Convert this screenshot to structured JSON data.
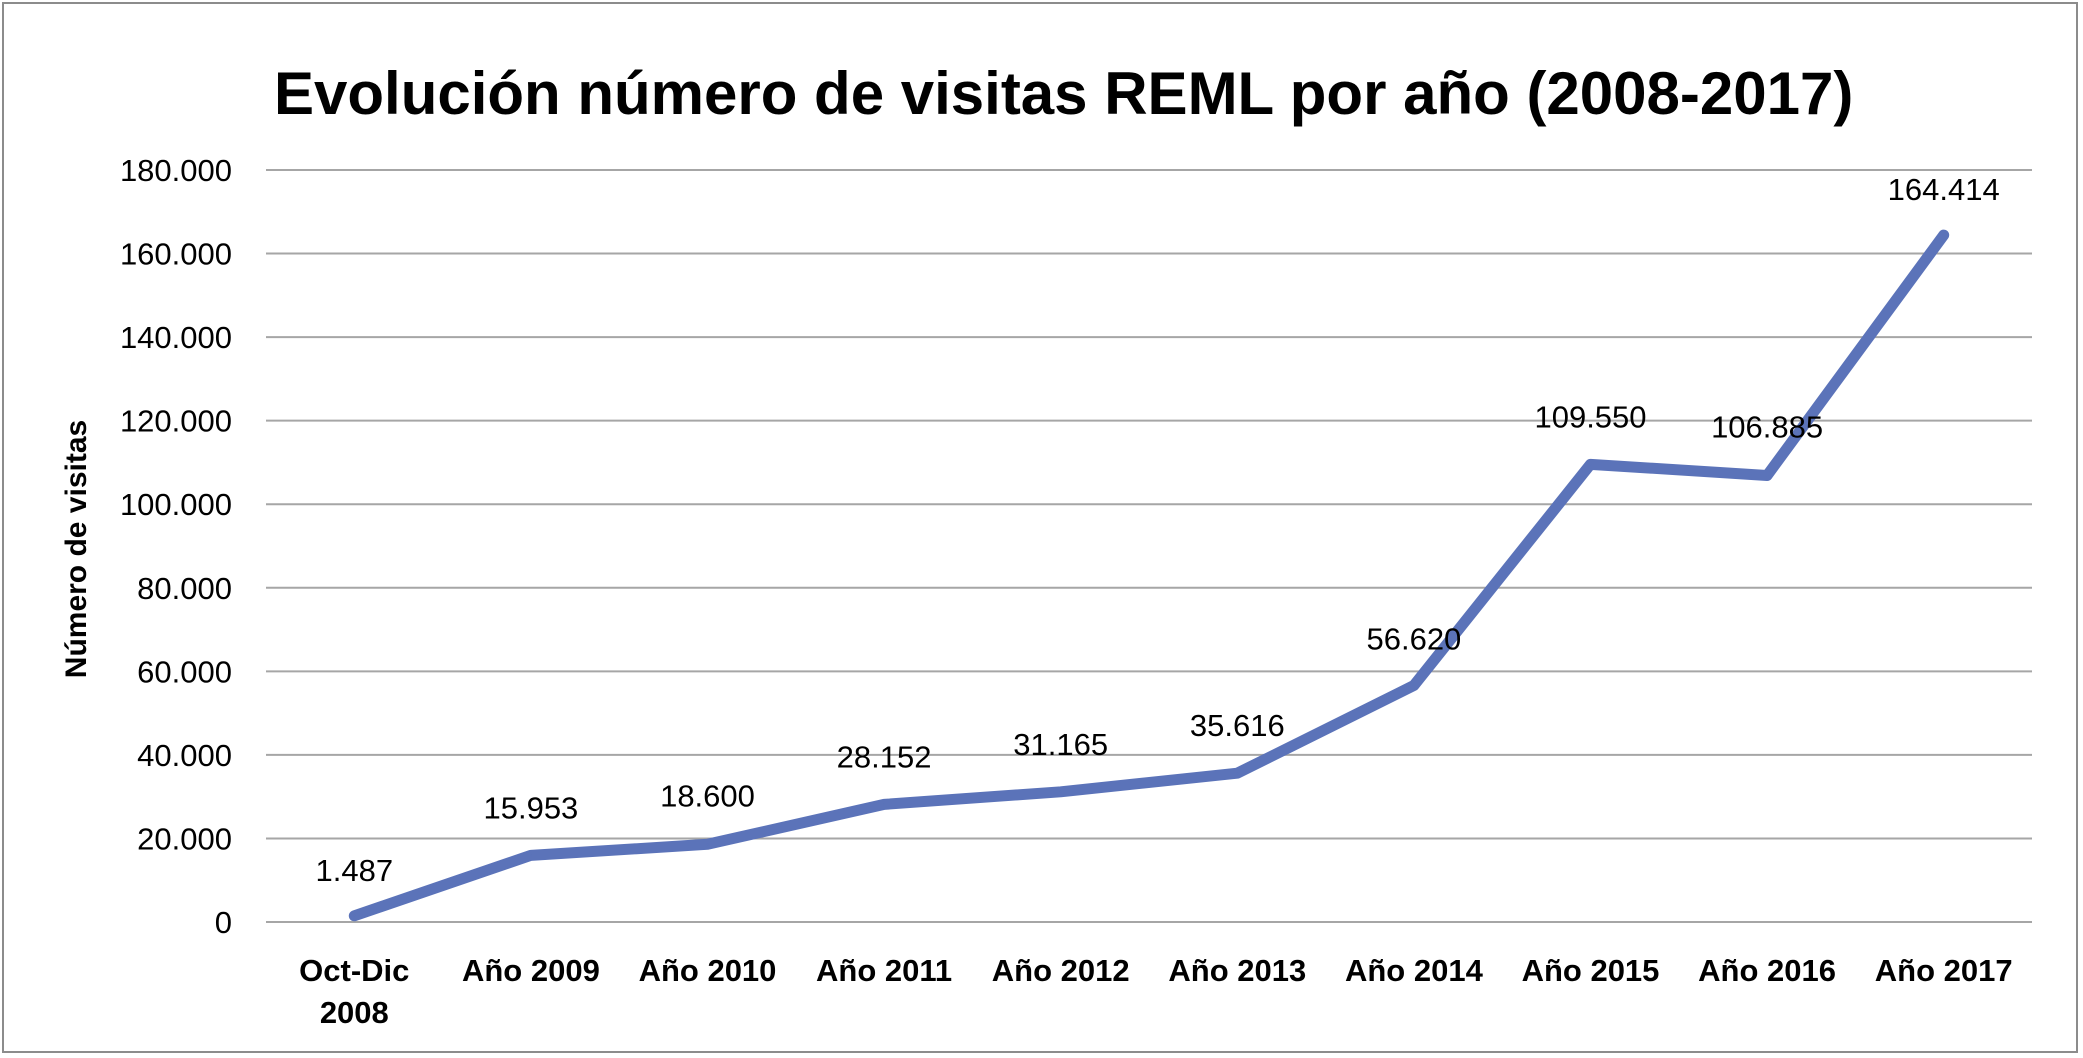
{
  "chart_data": {
    "type": "line",
    "title": "Evolución número de visitas REML por año (2008-2017)",
    "xlabel": "",
    "ylabel": "Número de visitas",
    "categories": [
      [
        "Oct-Dic",
        "2008"
      ],
      [
        "Año 2009"
      ],
      [
        "Año 2010"
      ],
      [
        "Año 2011"
      ],
      [
        "Año 2012"
      ],
      [
        "Año 2013"
      ],
      [
        "Año 2014"
      ],
      [
        "Año 2015"
      ],
      [
        "Año 2016"
      ],
      [
        "Año 2017"
      ]
    ],
    "series": [
      {
        "values": [
          1487,
          15953,
          18600,
          28152,
          31165,
          35616,
          56620,
          109550,
          106885,
          164414
        ],
        "data_labels": [
          "1.487",
          "15.953",
          "18.600",
          "28.152",
          "31.165",
          "35.616",
          "56.620",
          "109.550",
          "106.885",
          "164.414"
        ],
        "color": "#5b73b9"
      }
    ],
    "ylim": [
      0,
      180000
    ],
    "yticks": [
      0,
      20000,
      40000,
      60000,
      80000,
      100000,
      120000,
      140000,
      160000,
      180000
    ],
    "ytick_labels": [
      "0",
      "20.000",
      "40.000",
      "60.000",
      "80.000",
      "100.000",
      "120.000",
      "140.000",
      "160.000",
      "180.000"
    ],
    "grid": true,
    "legend": "none"
  },
  "colors": {
    "line": "#5b73b9",
    "grid": "#a6a6a6",
    "frame": "#8c8c8c",
    "background": "#ffffff"
  }
}
